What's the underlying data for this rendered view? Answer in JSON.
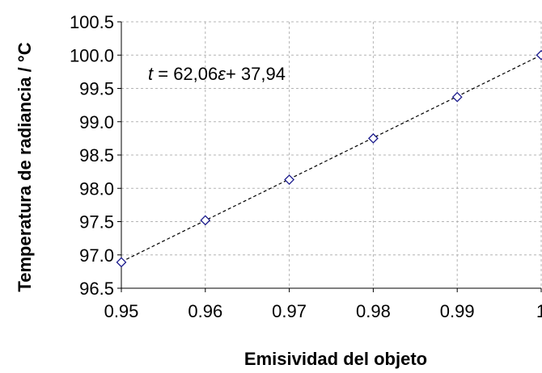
{
  "chart_data": {
    "type": "scatter",
    "xlabel": "Emisividad del objeto",
    "ylabel": "Temperatura de radiancia / °C",
    "xlim": [
      0.95,
      1.0
    ],
    "ylim": [
      96.5,
      100.5
    ],
    "x_ticks": [
      "0.95",
      "0.96",
      "0.97",
      "0.98",
      "0.99",
      "1"
    ],
    "y_ticks": [
      "96.5",
      "97.0",
      "97.5",
      "98.0",
      "98.5",
      "99.0",
      "99.5",
      "100.0",
      "100.5"
    ],
    "grid": true,
    "series": [
      {
        "marker": "diamond",
        "color": "#1a1a8c",
        "x": [
          0.95,
          0.96,
          0.97,
          0.98,
          0.99,
          1.0
        ],
        "y": [
          96.89,
          97.52,
          98.13,
          98.75,
          99.37,
          100.0
        ]
      }
    ],
    "trendline": {
      "style": "dashed",
      "color": "#000000",
      "slope": 62.06,
      "intercept": 37.94,
      "equation": {
        "var": "t",
        "eq": " = 62,06",
        "eps": "ε",
        "rest": "+ 37,94"
      }
    }
  }
}
